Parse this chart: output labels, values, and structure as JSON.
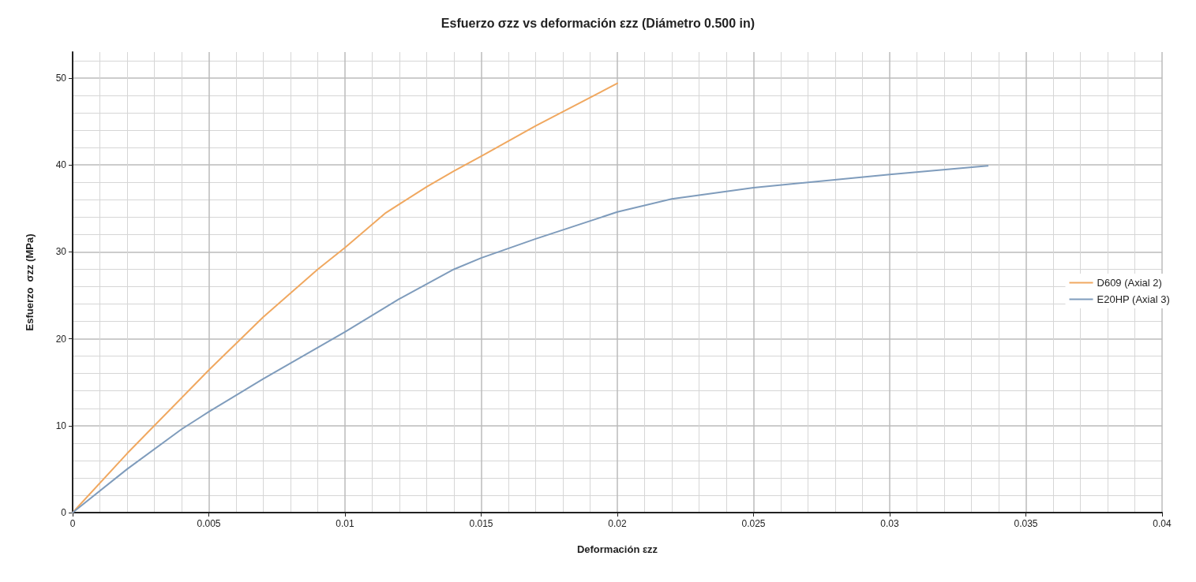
{
  "chart_data": {
    "type": "line",
    "title": "Esfuerzo σzz vs deformación εzz (Diámetro 0.500 in)",
    "xlabel": "Deformación εzz",
    "ylabel": "Esfuerzo  σzz (MPa)",
    "series": [
      {
        "name": "D609 (Axial 2)",
        "color": "#f0a860",
        "x": [
          0,
          0.002,
          0.003,
          0.005,
          0.007,
          0.009,
          0.01,
          0.0115,
          0.013,
          0.014,
          0.015,
          0.017,
          0.02
        ],
        "values": [
          0,
          6.8,
          10,
          16.4,
          22.5,
          28,
          30.5,
          34.5,
          37.5,
          39.3,
          41,
          44.5,
          49.4
        ]
      },
      {
        "name": "E20HP (Axial 3)",
        "color": "#7f9cbc",
        "x": [
          0,
          0.002,
          0.004,
          0.005,
          0.007,
          0.01,
          0.012,
          0.014,
          0.015,
          0.017,
          0.02,
          0.022,
          0.025,
          0.03,
          0.0336
        ],
        "values": [
          0,
          5,
          9.6,
          11.6,
          15.4,
          20.8,
          24.6,
          28,
          29.3,
          31.5,
          34.6,
          36.1,
          37.4,
          38.9,
          39.9
        ]
      }
    ],
    "xlim": [
      0,
      0.04
    ],
    "xticks": [
      0,
      0.005,
      0.01,
      0.015,
      0.02,
      0.025,
      0.03,
      0.035,
      0.04
    ],
    "ylim": [
      0,
      53
    ],
    "yticks": [
      0,
      10,
      20,
      30,
      40,
      50
    ],
    "grid": true,
    "legend": "right",
    "marker": "none",
    "line_style": "solid"
  }
}
